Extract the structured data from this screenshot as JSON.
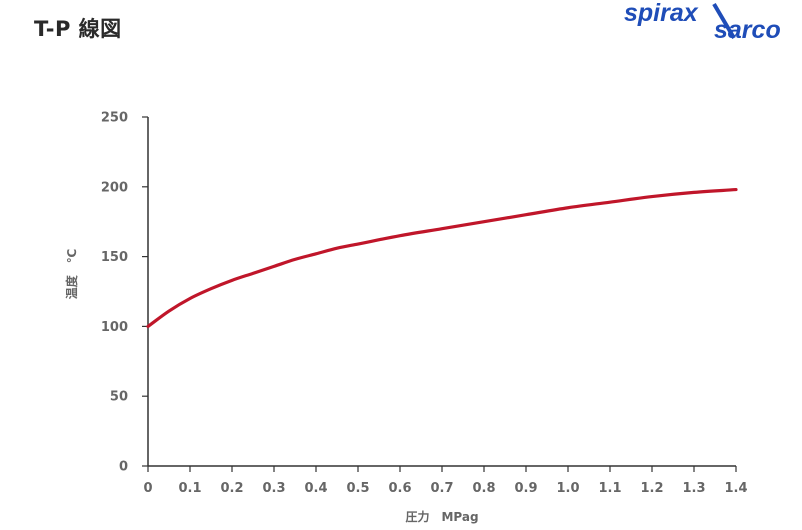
{
  "header": {
    "title": "T-P 線図"
  },
  "logo": {
    "text": "spiraxsarco",
    "color": "#1f4db8"
  },
  "colors": {
    "curve": "#c0162a",
    "axis": "#333333",
    "label": "#666666"
  },
  "chart_data": {
    "type": "line",
    "title": "",
    "xlabel": "圧力　MPag",
    "ylabel": "温度　℃",
    "xlim": [
      0,
      1.4
    ],
    "ylim": [
      0,
      250
    ],
    "x_ticks": [
      "0",
      "0.1",
      "0.2",
      "0.3",
      "0.4",
      "0.5",
      "0.6",
      "0.7",
      "0.8",
      "0.9",
      "1.0",
      "1.1",
      "1.2",
      "1.3",
      "1.4"
    ],
    "y_ticks": [
      "0",
      "50",
      "100",
      "150",
      "200",
      "250"
    ],
    "grid": false,
    "series": [
      {
        "x": [
          0,
          0.05,
          0.1,
          0.15,
          0.2,
          0.25,
          0.3,
          0.35,
          0.4,
          0.45,
          0.5,
          0.6,
          0.7,
          0.8,
          0.9,
          1.0,
          1.1,
          1.2,
          1.3,
          1.4
        ],
        "values": [
          100,
          111,
          120,
          127,
          133,
          138,
          143,
          148,
          152,
          156,
          159,
          165,
          170,
          175,
          180,
          185,
          189,
          193,
          196,
          198
        ]
      }
    ]
  }
}
